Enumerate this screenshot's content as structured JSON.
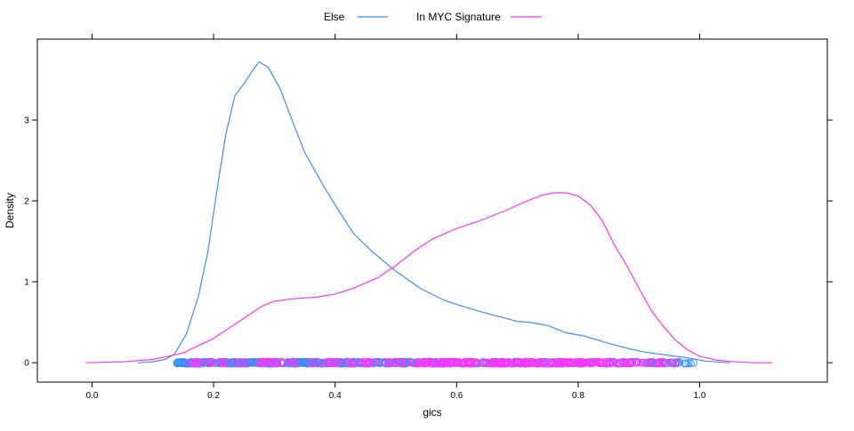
{
  "chart_data": {
    "type": "line",
    "xlabel": "gics",
    "ylabel": "Density",
    "xlim": [
      -0.09,
      1.21
    ],
    "ylim": [
      -0.24,
      4.0
    ],
    "x_ticks": [
      0.0,
      0.2,
      0.4,
      0.6,
      0.8,
      1.0
    ],
    "x_tick_labels": [
      "0.0",
      "0.2",
      "0.4",
      "0.6",
      "0.8",
      "1.0"
    ],
    "y_ticks": [
      0,
      1,
      2,
      3
    ],
    "y_tick_labels": [
      "0",
      "1",
      "2",
      "3"
    ],
    "legend_position": "top",
    "grid": false,
    "rug": {
      "shape": "open-circle",
      "y": 0,
      "series": [
        {
          "name": "Else",
          "range": [
            0.14,
            0.99
          ]
        },
        {
          "name": "In MYC Signature",
          "range": [
            0.16,
            0.96
          ]
        }
      ]
    },
    "series": [
      {
        "name": "Else",
        "color": "#3a8ef6",
        "x": [
          0.075,
          0.1,
          0.12,
          0.135,
          0.155,
          0.175,
          0.19,
          0.205,
          0.22,
          0.235,
          0.25,
          0.265,
          0.275,
          0.29,
          0.31,
          0.33,
          0.35,
          0.38,
          0.4,
          0.43,
          0.46,
          0.5,
          0.54,
          0.58,
          0.6,
          0.64,
          0.68,
          0.7,
          0.72,
          0.75,
          0.78,
          0.81,
          0.85,
          0.88,
          0.91,
          0.95,
          0.98,
          1.01,
          1.05
        ],
        "y": [
          0.0,
          0.01,
          0.04,
          0.1,
          0.35,
          0.82,
          1.35,
          2.1,
          2.82,
          3.3,
          3.45,
          3.62,
          3.72,
          3.65,
          3.38,
          2.98,
          2.6,
          2.2,
          1.95,
          1.6,
          1.38,
          1.13,
          0.92,
          0.77,
          0.72,
          0.63,
          0.55,
          0.51,
          0.5,
          0.46,
          0.37,
          0.33,
          0.24,
          0.18,
          0.13,
          0.09,
          0.06,
          0.02,
          0.0
        ]
      },
      {
        "name": "In MYC Signature",
        "color": "#ff33ff",
        "x": [
          -0.01,
          0.05,
          0.1,
          0.15,
          0.2,
          0.25,
          0.28,
          0.3,
          0.33,
          0.37,
          0.4,
          0.43,
          0.47,
          0.5,
          0.53,
          0.56,
          0.6,
          0.64,
          0.68,
          0.71,
          0.74,
          0.76,
          0.78,
          0.8,
          0.82,
          0.84,
          0.86,
          0.88,
          0.9,
          0.92,
          0.94,
          0.96,
          0.98,
          1.0,
          1.03,
          1.06,
          1.09,
          1.12
        ],
        "y": [
          0.0,
          0.01,
          0.04,
          0.12,
          0.3,
          0.55,
          0.7,
          0.76,
          0.79,
          0.81,
          0.85,
          0.92,
          1.05,
          1.2,
          1.38,
          1.53,
          1.66,
          1.76,
          1.88,
          1.98,
          2.07,
          2.1,
          2.1,
          2.06,
          1.95,
          1.75,
          1.45,
          1.2,
          0.92,
          0.65,
          0.45,
          0.28,
          0.16,
          0.08,
          0.03,
          0.01,
          0.0,
          0.0
        ]
      }
    ]
  }
}
